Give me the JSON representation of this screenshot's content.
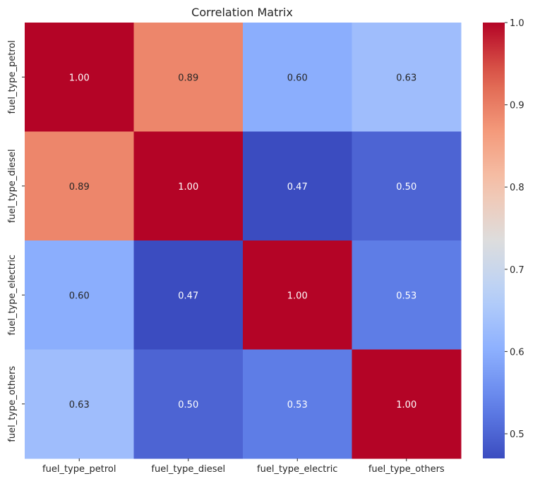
{
  "chart_data": {
    "type": "heatmap",
    "title": "Correlation Matrix",
    "xlabel": "",
    "ylabel": "",
    "x_labels": [
      "fuel_type_petrol",
      "fuel_type_diesel",
      "fuel_type_electric",
      "fuel_type_others"
    ],
    "y_labels": [
      "fuel_type_petrol",
      "fuel_type_diesel",
      "fuel_type_electric",
      "fuel_type_others"
    ],
    "values": [
      [
        1.0,
        0.89,
        0.6,
        0.63
      ],
      [
        0.89,
        1.0,
        0.47,
        0.5
      ],
      [
        0.6,
        0.47,
        1.0,
        0.53
      ],
      [
        0.63,
        0.5,
        0.53,
        1.0
      ]
    ],
    "colormap": "coolwarm",
    "vmin": 0.47,
    "vmax": 1.0,
    "annotation_format": "0.00",
    "colorbar": {
      "ticks": [
        "0.5",
        "0.6",
        "0.7",
        "0.8",
        "0.9",
        "1.0"
      ],
      "tick_values": [
        0.5,
        0.6,
        0.7,
        0.8,
        0.9,
        1.0
      ],
      "placement": "right"
    },
    "grid": false
  }
}
